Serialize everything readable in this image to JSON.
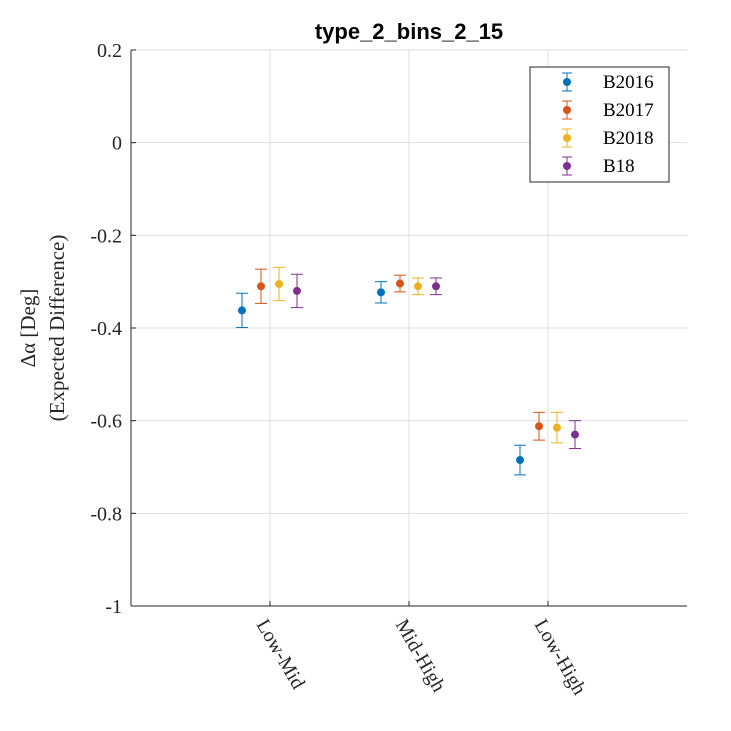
{
  "chart_data": {
    "type": "scatter",
    "title": "type_2_bins_2_15",
    "xlabel": "",
    "ylabel_line1": "Δα [Deg]",
    "ylabel_line2": "(Expected Difference)",
    "categories": [
      "Low-Mid",
      "Mid-High",
      "Low-High"
    ],
    "ylim": [
      -1,
      0.2
    ],
    "yticks": [
      0.2,
      0,
      -0.2,
      -0.4,
      -0.6,
      -0.8,
      -1
    ],
    "ytick_labels": [
      "0.2",
      "0",
      "-0.2",
      "-0.4",
      "-0.6",
      "-0.8",
      "-1"
    ],
    "grid": true,
    "legend_position": "top-right",
    "series": [
      {
        "name": "B2016",
        "color": "#0072BD",
        "values": [
          -0.362,
          -0.323,
          -0.685
        ],
        "err": [
          0.037,
          0.023,
          0.032
        ]
      },
      {
        "name": "B2017",
        "color": "#D95319",
        "values": [
          -0.31,
          -0.304,
          -0.612
        ],
        "err": [
          0.037,
          0.018,
          0.03
        ]
      },
      {
        "name": "B2018",
        "color": "#EDB120",
        "values": [
          -0.305,
          -0.31,
          -0.615
        ],
        "err": [
          0.036,
          0.018,
          0.033
        ]
      },
      {
        "name": "B18",
        "color": "#7E2F8E",
        "values": [
          -0.32,
          -0.31,
          -0.63
        ],
        "err": [
          0.036,
          0.018,
          0.03
        ]
      }
    ]
  }
}
